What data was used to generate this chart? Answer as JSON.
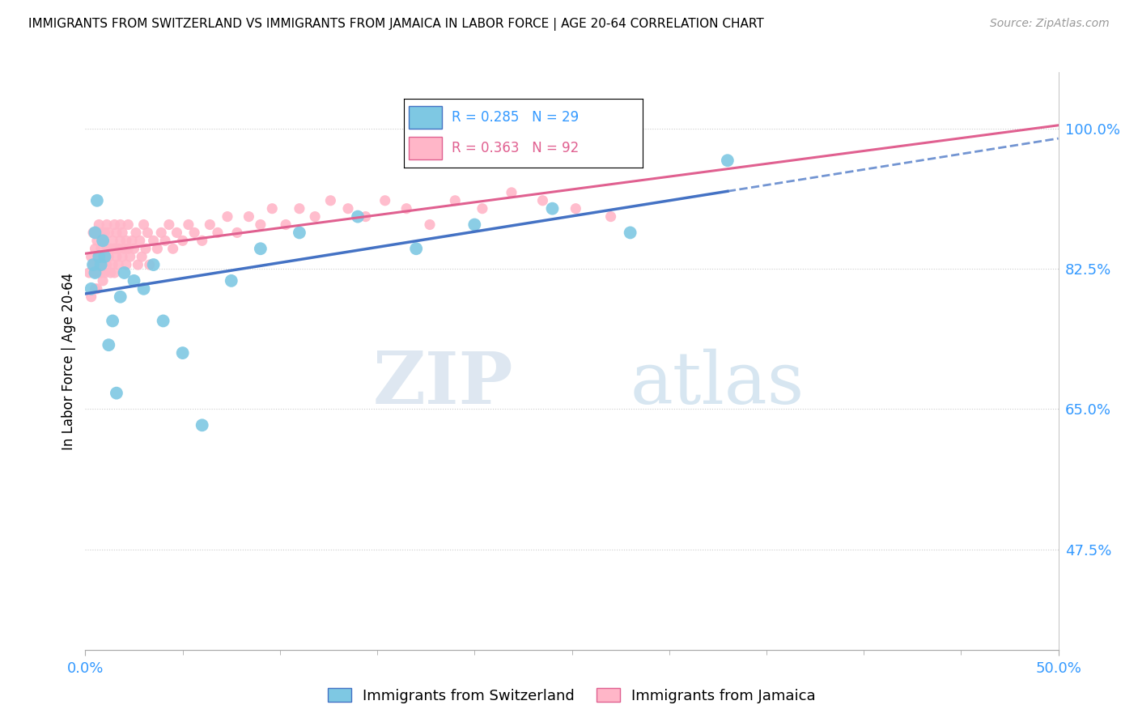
{
  "title": "IMMIGRANTS FROM SWITZERLAND VS IMMIGRANTS FROM JAMAICA IN LABOR FORCE | AGE 20-64 CORRELATION CHART",
  "source": "Source: ZipAtlas.com",
  "ylabel": "In Labor Force | Age 20-64",
  "right_yticks": [
    0.475,
    0.65,
    0.825,
    1.0
  ],
  "right_yticklabels": [
    "47.5%",
    "65.0%",
    "82.5%",
    "100.0%"
  ],
  "xlim": [
    0.0,
    0.5
  ],
  "ylim": [
    0.35,
    1.07
  ],
  "legend_blue_label": "Immigrants from Switzerland",
  "legend_pink_label": "Immigrants from Jamaica",
  "R_blue": 0.285,
  "N_blue": 29,
  "R_pink": 0.363,
  "N_pink": 92,
  "blue_color": "#7ec8e3",
  "pink_color": "#ffb6c8",
  "blue_line_color": "#4472c4",
  "pink_line_color": "#e06090",
  "watermark_zip": "ZIP",
  "watermark_atlas": "atlas",
  "swiss_x": [
    0.003,
    0.004,
    0.005,
    0.005,
    0.006,
    0.007,
    0.008,
    0.009,
    0.01,
    0.012,
    0.014,
    0.016,
    0.018,
    0.02,
    0.025,
    0.03,
    0.035,
    0.04,
    0.05,
    0.06,
    0.075,
    0.09,
    0.11,
    0.14,
    0.17,
    0.2,
    0.24,
    0.28,
    0.33
  ],
  "swiss_y": [
    0.8,
    0.83,
    0.82,
    0.87,
    0.91,
    0.84,
    0.83,
    0.86,
    0.84,
    0.73,
    0.76,
    0.67,
    0.79,
    0.82,
    0.81,
    0.8,
    0.83,
    0.76,
    0.72,
    0.63,
    0.81,
    0.85,
    0.87,
    0.89,
    0.85,
    0.88,
    0.9,
    0.87,
    0.96
  ],
  "jamaica_x": [
    0.002,
    0.003,
    0.003,
    0.004,
    0.004,
    0.005,
    0.005,
    0.005,
    0.006,
    0.006,
    0.006,
    0.007,
    0.007,
    0.007,
    0.008,
    0.008,
    0.008,
    0.009,
    0.009,
    0.009,
    0.01,
    0.01,
    0.01,
    0.011,
    0.011,
    0.011,
    0.012,
    0.012,
    0.013,
    0.013,
    0.014,
    0.014,
    0.015,
    0.015,
    0.015,
    0.016,
    0.016,
    0.017,
    0.017,
    0.018,
    0.018,
    0.019,
    0.019,
    0.02,
    0.021,
    0.021,
    0.022,
    0.022,
    0.023,
    0.024,
    0.025,
    0.026,
    0.027,
    0.028,
    0.029,
    0.03,
    0.031,
    0.032,
    0.033,
    0.035,
    0.037,
    0.039,
    0.041,
    0.043,
    0.045,
    0.047,
    0.05,
    0.053,
    0.056,
    0.06,
    0.064,
    0.068,
    0.073,
    0.078,
    0.084,
    0.09,
    0.096,
    0.103,
    0.11,
    0.118,
    0.126,
    0.135,
    0.144,
    0.154,
    0.165,
    0.177,
    0.19,
    0.204,
    0.219,
    0.235,
    0.252,
    0.27
  ],
  "jamaica_y": [
    0.82,
    0.84,
    0.79,
    0.83,
    0.87,
    0.82,
    0.8,
    0.85,
    0.83,
    0.86,
    0.8,
    0.84,
    0.88,
    0.83,
    0.82,
    0.85,
    0.87,
    0.84,
    0.81,
    0.86,
    0.84,
    0.87,
    0.82,
    0.85,
    0.83,
    0.88,
    0.84,
    0.87,
    0.85,
    0.82,
    0.86,
    0.83,
    0.85,
    0.88,
    0.82,
    0.84,
    0.87,
    0.85,
    0.83,
    0.86,
    0.88,
    0.84,
    0.87,
    0.85,
    0.86,
    0.83,
    0.85,
    0.88,
    0.84,
    0.86,
    0.85,
    0.87,
    0.83,
    0.86,
    0.84,
    0.88,
    0.85,
    0.87,
    0.83,
    0.86,
    0.85,
    0.87,
    0.86,
    0.88,
    0.85,
    0.87,
    0.86,
    0.88,
    0.87,
    0.86,
    0.88,
    0.87,
    0.89,
    0.87,
    0.89,
    0.88,
    0.9,
    0.88,
    0.9,
    0.89,
    0.91,
    0.9,
    0.89,
    0.91,
    0.9,
    0.88,
    0.91,
    0.9,
    0.92,
    0.91,
    0.9,
    0.89
  ]
}
